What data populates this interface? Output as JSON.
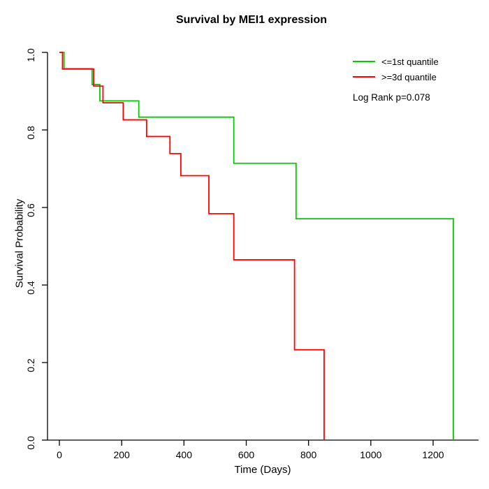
{
  "chart_data": {
    "type": "line",
    "subtype": "kaplan-meier-step",
    "title": "Survival by MEI1 expression",
    "xlabel": "Time (Days)",
    "ylabel": "Survival Probability",
    "xlim": [
      0,
      1300
    ],
    "ylim": [
      0.0,
      1.0
    ],
    "grid": false,
    "legend_position": "top-right",
    "annotation": "Log Rank p=0.078",
    "x_tick_values": [
      0,
      200,
      400,
      600,
      800,
      1000,
      1200
    ],
    "x_tick_labels": [
      "0",
      "200",
      "400",
      "600",
      "800",
      "1000",
      "1200"
    ],
    "y_tick_values": [
      0.0,
      0.2,
      0.4,
      0.6,
      0.8,
      1.0
    ],
    "y_tick_labels": [
      "0.0",
      "0.2",
      "0.4",
      "0.6",
      "0.8",
      "1.0"
    ],
    "axis_color": "#000000",
    "series": [
      {
        "name": "<=1st quantile",
        "color": "#00CC00",
        "points": [
          [
            0,
            1.0
          ],
          [
            15,
            0.958
          ],
          [
            105,
            0.917
          ],
          [
            130,
            0.875
          ],
          [
            255,
            0.833
          ],
          [
            560,
            0.714
          ],
          [
            760,
            0.571
          ],
          [
            1265,
            0.0
          ]
        ]
      },
      {
        "name": ">=3d quantile",
        "color": "#FF0000",
        "points": [
          [
            0,
            1.0
          ],
          [
            10,
            0.957
          ],
          [
            110,
            0.913
          ],
          [
            140,
            0.87
          ],
          [
            205,
            0.826
          ],
          [
            280,
            0.783
          ],
          [
            355,
            0.739
          ],
          [
            390,
            0.682
          ],
          [
            480,
            0.584
          ],
          [
            560,
            0.465
          ],
          [
            755,
            0.233
          ],
          [
            850,
            0.0
          ]
        ]
      }
    ]
  }
}
